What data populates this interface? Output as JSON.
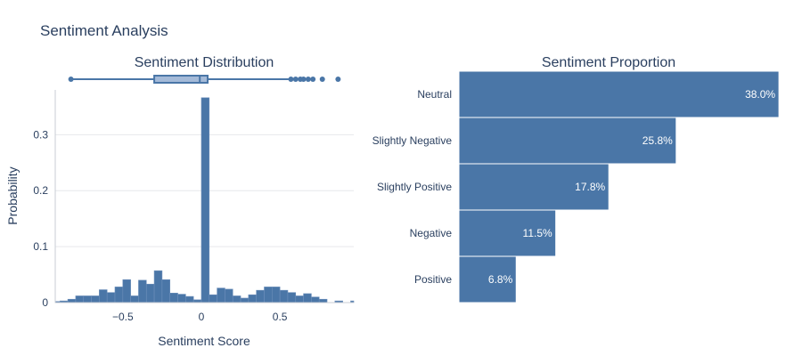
{
  "figure": {
    "title": "Sentiment Analysis"
  },
  "colors": {
    "bar": "#4a76a7",
    "bar_edge": "#6d8fbb",
    "box_fill": "#a4bad8",
    "box_line": "#4a76a7",
    "grid": "#e6e8ec",
    "axis": "#c8cdd4",
    "text": "#2a3f5f"
  },
  "chart_data": [
    {
      "type": "histogram",
      "title": "Sentiment Distribution",
      "xlabel": "Sentiment Score",
      "ylabel": "Probability",
      "xlim": [
        -0.93,
        0.97
      ],
      "ylim": [
        0,
        0.38
      ],
      "xticks": [
        -0.5,
        0,
        0.5
      ],
      "xtick_labels": [
        "−0.5",
        "0",
        "0.5"
      ],
      "yticks": [
        0,
        0.1,
        0.2,
        0.3
      ],
      "ytick_labels": [
        "0",
        "0.1",
        "0.2",
        "0.3"
      ],
      "grid": true,
      "bin_width": 0.05,
      "bins": [
        {
          "x0": -0.95,
          "y": 0.002
        },
        {
          "x0": -0.9,
          "y": 0.003
        },
        {
          "x0": -0.85,
          "y": 0.006
        },
        {
          "x0": -0.8,
          "y": 0.012
        },
        {
          "x0": -0.75,
          "y": 0.012
        },
        {
          "x0": -0.7,
          "y": 0.012
        },
        {
          "x0": -0.65,
          "y": 0.023
        },
        {
          "x0": -0.6,
          "y": 0.018
        },
        {
          "x0": -0.55,
          "y": 0.028
        },
        {
          "x0": -0.5,
          "y": 0.041
        },
        {
          "x0": -0.45,
          "y": 0.012
        },
        {
          "x0": -0.4,
          "y": 0.04
        },
        {
          "x0": -0.35,
          "y": 0.033
        },
        {
          "x0": -0.3,
          "y": 0.057
        },
        {
          "x0": -0.25,
          "y": 0.041
        },
        {
          "x0": -0.2,
          "y": 0.017
        },
        {
          "x0": -0.15,
          "y": 0.015
        },
        {
          "x0": -0.1,
          "y": 0.011
        },
        {
          "x0": -0.05,
          "y": 0.005
        },
        {
          "x0": 0.0,
          "y": 0.366
        },
        {
          "x0": 0.05,
          "y": 0.014
        },
        {
          "x0": 0.1,
          "y": 0.026
        },
        {
          "x0": 0.15,
          "y": 0.024
        },
        {
          "x0": 0.2,
          "y": 0.012
        },
        {
          "x0": 0.25,
          "y": 0.008
        },
        {
          "x0": 0.3,
          "y": 0.014
        },
        {
          "x0": 0.35,
          "y": 0.022
        },
        {
          "x0": 0.4,
          "y": 0.028
        },
        {
          "x0": 0.45,
          "y": 0.028
        },
        {
          "x0": 0.5,
          "y": 0.022
        },
        {
          "x0": 0.55,
          "y": 0.018
        },
        {
          "x0": 0.6,
          "y": 0.012
        },
        {
          "x0": 0.65,
          "y": 0.016
        },
        {
          "x0": 0.7,
          "y": 0.01
        },
        {
          "x0": 0.75,
          "y": 0.006
        },
        {
          "x0": 0.8,
          "y": 0.0
        },
        {
          "x0": 0.85,
          "y": 0.003
        },
        {
          "x0": 0.9,
          "y": 0.0
        },
        {
          "x0": 0.95,
          "y": 0.003
        }
      ],
      "marginal_box": {
        "whisker_low": -0.83,
        "q1": -0.3,
        "median": -0.01,
        "q3": 0.04,
        "whisker_high": 0.56,
        "outliers": [
          0.57,
          0.6,
          0.63,
          0.65,
          0.68,
          0.71,
          0.77,
          0.87
        ]
      }
    },
    {
      "type": "bar",
      "orientation": "horizontal",
      "title": "Sentiment Proportion",
      "categories": [
        "Neutral",
        "Slightly Negative",
        "Slightly Positive",
        "Negative",
        "Positive"
      ],
      "values": [
        38.0,
        25.8,
        17.8,
        11.5,
        6.8
      ],
      "labels": [
        "38.0%",
        "25.8%",
        "17.8%",
        "11.5%",
        "6.8%"
      ],
      "xlim": [
        0,
        40
      ]
    }
  ]
}
